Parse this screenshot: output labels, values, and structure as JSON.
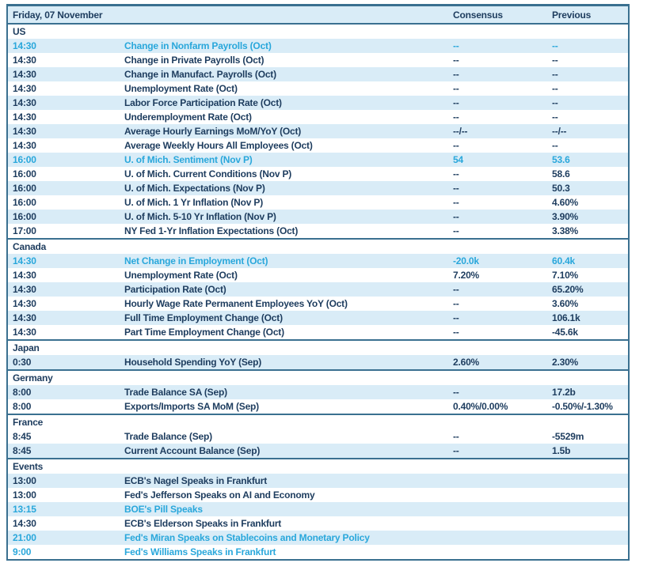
{
  "table": {
    "title": "Friday, 07 November",
    "columns": {
      "consensus": "Consensus",
      "previous": "Previous"
    },
    "colors": {
      "border": "#3a7090",
      "text": "#1d3c5e",
      "highlight": "#29a7db",
      "row_shaded_bg": "#d9ecf7",
      "header_bg": "#d9ecf7"
    },
    "sections": [
      {
        "name": "US",
        "rows": [
          {
            "time": "14:30",
            "event": "Change in Nonfarm Payrolls (Oct)",
            "consensus": "--",
            "previous": "--",
            "highlight": true,
            "shaded": true
          },
          {
            "time": "14:30",
            "event": "Change in Private Payrolls (Oct)",
            "consensus": "--",
            "previous": "--",
            "highlight": false,
            "shaded": false
          },
          {
            "time": "14:30",
            "event": "Change in Manufact. Payrolls (Oct)",
            "consensus": "--",
            "previous": "--",
            "highlight": false,
            "shaded": true
          },
          {
            "time": "14:30",
            "event": "Unemployment Rate (Oct)",
            "consensus": "--",
            "previous": "--",
            "highlight": false,
            "shaded": false
          },
          {
            "time": "14:30",
            "event": "Labor Force Participation Rate (Oct)",
            "consensus": "--",
            "previous": "--",
            "highlight": false,
            "shaded": true
          },
          {
            "time": "14:30",
            "event": "Underemployment Rate (Oct)",
            "consensus": "--",
            "previous": "--",
            "highlight": false,
            "shaded": false
          },
          {
            "time": "14:30",
            "event": "Average Hourly Earnings MoM/YoY (Oct)",
            "consensus": "--/--",
            "previous": "--/--",
            "highlight": false,
            "shaded": true
          },
          {
            "time": "14:30",
            "event": "Average Weekly Hours All Employees (Oct)",
            "consensus": "--",
            "previous": "--",
            "highlight": false,
            "shaded": false
          },
          {
            "time": "16:00",
            "event": "U. of Mich. Sentiment (Nov P)",
            "consensus": "54",
            "previous": "53.6",
            "highlight": true,
            "shaded": true
          },
          {
            "time": "16:00",
            "event": "U. of Mich. Current Conditions (Nov P)",
            "consensus": "--",
            "previous": "58.6",
            "highlight": false,
            "shaded": false
          },
          {
            "time": "16:00",
            "event": "U. of Mich. Expectations (Nov P)",
            "consensus": "--",
            "previous": "50.3",
            "highlight": false,
            "shaded": true
          },
          {
            "time": "16:00",
            "event": "U. of Mich. 1 Yr Inflation (Nov P)",
            "consensus": "--",
            "previous": "4.60%",
            "highlight": false,
            "shaded": false
          },
          {
            "time": "16:00",
            "event": "U. of Mich. 5-10 Yr Inflation (Nov P)",
            "consensus": "--",
            "previous": "3.90%",
            "highlight": false,
            "shaded": true
          },
          {
            "time": "17:00",
            "event": "NY Fed 1-Yr Inflation Expectations (Oct)",
            "consensus": "--",
            "previous": "3.38%",
            "highlight": false,
            "shaded": false
          }
        ]
      },
      {
        "name": "Canada",
        "rows": [
          {
            "time": "14:30",
            "event": "Net Change in Employment (Oct)",
            "consensus": "-20.0k",
            "previous": "60.4k",
            "highlight": true,
            "shaded": true
          },
          {
            "time": "14:30",
            "event": "Unemployment Rate (Oct)",
            "consensus": "7.20%",
            "previous": "7.10%",
            "highlight": false,
            "shaded": false
          },
          {
            "time": "14:30",
            "event": "Participation Rate (Oct)",
            "consensus": "--",
            "previous": "65.20%",
            "highlight": false,
            "shaded": true
          },
          {
            "time": "14:30",
            "event": "Hourly Wage Rate Permanent Employees YoY (Oct)",
            "consensus": "--",
            "previous": "3.60%",
            "highlight": false,
            "shaded": false
          },
          {
            "time": "14:30",
            "event": "Full Time Employment Change (Oct)",
            "consensus": "--",
            "previous": "106.1k",
            "highlight": false,
            "shaded": true
          },
          {
            "time": "14:30",
            "event": "Part Time Employment Change (Oct)",
            "consensus": "--",
            "previous": "-45.6k",
            "highlight": false,
            "shaded": false
          }
        ]
      },
      {
        "name": "Japan",
        "rows": [
          {
            "time": "0:30",
            "event": "Household Spending YoY (Sep)",
            "consensus": "2.60%",
            "previous": "2.30%",
            "highlight": false,
            "shaded": true
          }
        ]
      },
      {
        "name": "Germany",
        "rows": [
          {
            "time": "8:00",
            "event": "Trade Balance SA (Sep)",
            "consensus": "--",
            "previous": "17.2b",
            "highlight": false,
            "shaded": true
          },
          {
            "time": "8:00",
            "event": "Exports/Imports SA MoM (Sep)",
            "consensus": "0.40%/0.00%",
            "previous": "-0.50%/-1.30%",
            "highlight": false,
            "shaded": false
          }
        ]
      },
      {
        "name": "France",
        "rows": [
          {
            "time": "8:45",
            "event": "Trade Balance (Sep)",
            "consensus": "--",
            "previous": "-5529m",
            "highlight": false,
            "shaded": false
          },
          {
            "time": "8:45",
            "event": "Current Account Balance (Sep)",
            "consensus": "--",
            "previous": "1.5b",
            "highlight": false,
            "shaded": true
          }
        ]
      },
      {
        "name": "Events",
        "rows": [
          {
            "time": "13:00",
            "event": "ECB's Nagel Speaks in Frankfurt",
            "consensus": "",
            "previous": "",
            "highlight": false,
            "shaded": true
          },
          {
            "time": "13:00",
            "event": "Fed's Jefferson Speaks on AI and Economy",
            "consensus": "",
            "previous": "",
            "highlight": false,
            "shaded": false
          },
          {
            "time": "13:15",
            "event": "BOE's Pill Speaks",
            "consensus": "",
            "previous": "",
            "highlight": true,
            "shaded": true
          },
          {
            "time": "14:30",
            "event": "ECB's Elderson Speaks in Frankfurt",
            "consensus": "",
            "previous": "",
            "highlight": false,
            "shaded": false
          },
          {
            "time": "21:00",
            "event": "Fed's Miran Speaks on Stablecoins and Monetary Policy",
            "consensus": "",
            "previous": "",
            "highlight": true,
            "shaded": true
          },
          {
            "time": "9:00",
            "event": "Fed's Williams Speaks in Frankfurt",
            "consensus": "",
            "previous": "",
            "highlight": true,
            "shaded": false
          }
        ]
      }
    ]
  }
}
